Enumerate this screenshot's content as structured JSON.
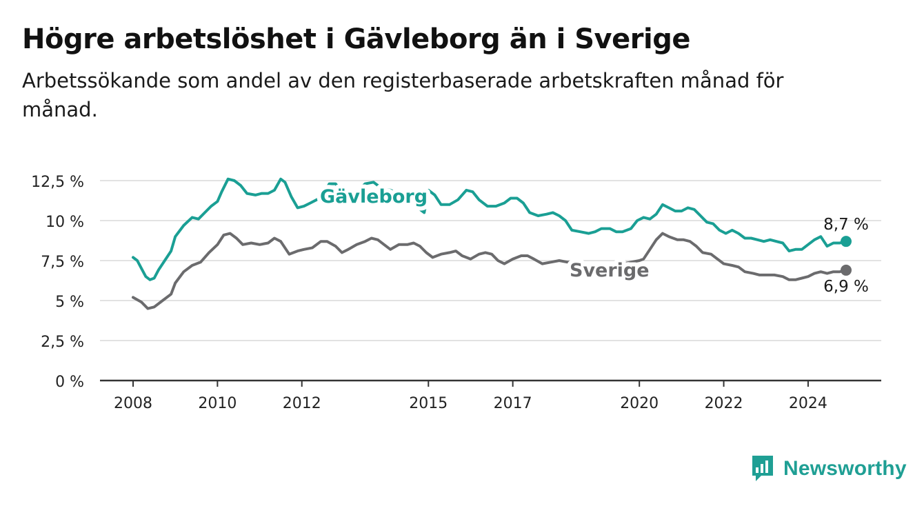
{
  "title": "Högre arbetslöshet i Gävleborg än i Sverige",
  "subtitle": "Arbetssökande som andel av den registerbaserade arbetskraften månad för månad.",
  "brand": {
    "name": "Newsworthy",
    "icon": "newsworthy-logo-icon"
  },
  "colors": {
    "gavleborg": "#1a9f94",
    "sverige": "#6b6b6d",
    "grid": "#d9d9d9",
    "axis": "#333333"
  },
  "chart_data": {
    "type": "line",
    "ylim": [
      0,
      12.5
    ],
    "yticks": [
      0,
      2.5,
      5,
      7.5,
      10,
      12.5
    ],
    "ytick_labels": [
      "0 %",
      "2,5 %",
      "5 %",
      "7,5 %",
      "10 %",
      "12,5 %"
    ],
    "xlim": [
      2008.0,
      2024.9
    ],
    "xticks": [
      2008,
      2010,
      2012,
      2015,
      2017,
      2020,
      2022,
      2024
    ],
    "xtick_labels": [
      "2008",
      "2010",
      "2012",
      "2015",
      "2017",
      "2020",
      "2022",
      "2024"
    ],
    "grid": true,
    "legend": "inline labels",
    "series": [
      {
        "name": "Gävleborg",
        "end_label": "8,7 %",
        "points": [
          [
            2008.0,
            7.7
          ],
          [
            2008.1,
            7.5
          ],
          [
            2008.2,
            7.0
          ],
          [
            2008.3,
            6.5
          ],
          [
            2008.4,
            6.3
          ],
          [
            2008.5,
            6.4
          ],
          [
            2008.6,
            6.9
          ],
          [
            2008.75,
            7.5
          ],
          [
            2008.9,
            8.1
          ],
          [
            2009.0,
            9.0
          ],
          [
            2009.2,
            9.7
          ],
          [
            2009.4,
            10.2
          ],
          [
            2009.55,
            10.1
          ],
          [
            2009.7,
            10.5
          ],
          [
            2009.85,
            10.9
          ],
          [
            2010.0,
            11.2
          ],
          [
            2010.1,
            11.8
          ],
          [
            2010.25,
            12.6
          ],
          [
            2010.4,
            12.5
          ],
          [
            2010.55,
            12.2
          ],
          [
            2010.7,
            11.7
          ],
          [
            2010.9,
            11.6
          ],
          [
            2011.05,
            11.7
          ],
          [
            2011.2,
            11.7
          ],
          [
            2011.35,
            11.9
          ],
          [
            2011.5,
            12.6
          ],
          [
            2011.6,
            12.4
          ],
          [
            2011.75,
            11.5
          ],
          [
            2011.9,
            10.8
          ],
          [
            2012.05,
            10.9
          ],
          [
            2012.2,
            11.1
          ],
          [
            2012.35,
            11.3
          ],
          [
            2012.5,
            11.6
          ],
          [
            2012.65,
            12.3
          ],
          [
            2012.8,
            12.3
          ],
          [
            2012.95,
            11.8
          ],
          [
            2013.1,
            11.2
          ],
          [
            2013.3,
            11.8
          ],
          [
            2013.5,
            12.3
          ],
          [
            2013.7,
            12.4
          ],
          [
            2013.9,
            12.0
          ],
          [
            2014.1,
            11.9
          ],
          [
            2014.3,
            11.7
          ],
          [
            2014.45,
            11.6
          ],
          [
            2014.6,
            11.3
          ],
          [
            2014.75,
            10.8
          ],
          [
            2014.9,
            10.5
          ],
          [
            2015.0,
            11.9
          ],
          [
            2015.15,
            11.6
          ],
          [
            2015.3,
            11.0
          ],
          [
            2015.5,
            11.0
          ],
          [
            2015.7,
            11.3
          ],
          [
            2015.9,
            11.9
          ],
          [
            2016.05,
            11.8
          ],
          [
            2016.2,
            11.3
          ],
          [
            2016.4,
            10.9
          ],
          [
            2016.6,
            10.9
          ],
          [
            2016.8,
            11.1
          ],
          [
            2016.95,
            11.4
          ],
          [
            2017.1,
            11.4
          ],
          [
            2017.25,
            11.1
          ],
          [
            2017.4,
            10.5
          ],
          [
            2017.6,
            10.3
          ],
          [
            2017.8,
            10.4
          ],
          [
            2017.95,
            10.5
          ],
          [
            2018.1,
            10.3
          ],
          [
            2018.25,
            10.0
          ],
          [
            2018.4,
            9.4
          ],
          [
            2018.6,
            9.3
          ],
          [
            2018.8,
            9.2
          ],
          [
            2018.95,
            9.3
          ],
          [
            2019.1,
            9.5
          ],
          [
            2019.3,
            9.5
          ],
          [
            2019.45,
            9.3
          ],
          [
            2019.6,
            9.3
          ],
          [
            2019.8,
            9.5
          ],
          [
            2019.95,
            10.0
          ],
          [
            2020.1,
            10.2
          ],
          [
            2020.25,
            10.1
          ],
          [
            2020.4,
            10.4
          ],
          [
            2020.55,
            11.0
          ],
          [
            2020.7,
            10.8
          ],
          [
            2020.85,
            10.6
          ],
          [
            2021.0,
            10.6
          ],
          [
            2021.15,
            10.8
          ],
          [
            2021.3,
            10.7
          ],
          [
            2021.45,
            10.3
          ],
          [
            2021.6,
            9.9
          ],
          [
            2021.75,
            9.8
          ],
          [
            2021.9,
            9.4
          ],
          [
            2022.05,
            9.2
          ],
          [
            2022.2,
            9.4
          ],
          [
            2022.35,
            9.2
          ],
          [
            2022.5,
            8.9
          ],
          [
            2022.65,
            8.9
          ],
          [
            2022.8,
            8.8
          ],
          [
            2022.95,
            8.7
          ],
          [
            2023.1,
            8.8
          ],
          [
            2023.25,
            8.7
          ],
          [
            2023.4,
            8.6
          ],
          [
            2023.55,
            8.1
          ],
          [
            2023.7,
            8.2
          ],
          [
            2023.85,
            8.2
          ],
          [
            2024.0,
            8.5
          ],
          [
            2024.15,
            8.8
          ],
          [
            2024.3,
            9.0
          ],
          [
            2024.45,
            8.4
          ],
          [
            2024.6,
            8.6
          ],
          [
            2024.75,
            8.6
          ],
          [
            2024.9,
            8.7
          ]
        ]
      },
      {
        "name": "Sverige",
        "end_label": "6,9 %",
        "points": [
          [
            2008.0,
            5.2
          ],
          [
            2008.2,
            4.9
          ],
          [
            2008.35,
            4.5
          ],
          [
            2008.5,
            4.6
          ],
          [
            2008.7,
            5.0
          ],
          [
            2008.9,
            5.4
          ],
          [
            2009.0,
            6.1
          ],
          [
            2009.2,
            6.8
          ],
          [
            2009.4,
            7.2
          ],
          [
            2009.6,
            7.4
          ],
          [
            2009.8,
            8.0
          ],
          [
            2010.0,
            8.5
          ],
          [
            2010.15,
            9.1
          ],
          [
            2010.3,
            9.2
          ],
          [
            2010.45,
            8.9
          ],
          [
            2010.6,
            8.5
          ],
          [
            2010.8,
            8.6
          ],
          [
            2011.0,
            8.5
          ],
          [
            2011.2,
            8.6
          ],
          [
            2011.35,
            8.9
          ],
          [
            2011.5,
            8.7
          ],
          [
            2011.7,
            7.9
          ],
          [
            2011.9,
            8.1
          ],
          [
            2012.05,
            8.2
          ],
          [
            2012.25,
            8.3
          ],
          [
            2012.45,
            8.7
          ],
          [
            2012.6,
            8.7
          ],
          [
            2012.8,
            8.4
          ],
          [
            2012.95,
            8.0
          ],
          [
            2013.1,
            8.2
          ],
          [
            2013.3,
            8.5
          ],
          [
            2013.5,
            8.7
          ],
          [
            2013.65,
            8.9
          ],
          [
            2013.8,
            8.8
          ],
          [
            2013.95,
            8.5
          ],
          [
            2014.1,
            8.2
          ],
          [
            2014.3,
            8.5
          ],
          [
            2014.5,
            8.5
          ],
          [
            2014.65,
            8.6
          ],
          [
            2014.8,
            8.4
          ],
          [
            2014.95,
            8.0
          ],
          [
            2015.1,
            7.7
          ],
          [
            2015.3,
            7.9
          ],
          [
            2015.5,
            8.0
          ],
          [
            2015.65,
            8.1
          ],
          [
            2015.8,
            7.8
          ],
          [
            2016.0,
            7.6
          ],
          [
            2016.2,
            7.9
          ],
          [
            2016.35,
            8.0
          ],
          [
            2016.5,
            7.9
          ],
          [
            2016.65,
            7.5
          ],
          [
            2016.8,
            7.3
          ],
          [
            2017.0,
            7.6
          ],
          [
            2017.2,
            7.8
          ],
          [
            2017.35,
            7.8
          ],
          [
            2017.5,
            7.6
          ],
          [
            2017.7,
            7.3
          ],
          [
            2017.9,
            7.4
          ],
          [
            2018.1,
            7.5
          ],
          [
            2018.3,
            7.4
          ],
          [
            2018.45,
            7.4
          ],
          [
            2018.6,
            7.2
          ],
          [
            2018.8,
            7.0
          ],
          [
            2019.0,
            7.0
          ],
          [
            2019.2,
            7.1
          ],
          [
            2019.4,
            7.2
          ],
          [
            2019.6,
            7.3
          ],
          [
            2019.8,
            7.4
          ],
          [
            2020.0,
            7.5
          ],
          [
            2020.1,
            7.6
          ],
          [
            2020.25,
            8.2
          ],
          [
            2020.4,
            8.8
          ],
          [
            2020.55,
            9.2
          ],
          [
            2020.7,
            9.0
          ],
          [
            2020.9,
            8.8
          ],
          [
            2021.05,
            8.8
          ],
          [
            2021.2,
            8.7
          ],
          [
            2021.35,
            8.4
          ],
          [
            2021.5,
            8.0
          ],
          [
            2021.7,
            7.9
          ],
          [
            2021.85,
            7.6
          ],
          [
            2022.0,
            7.3
          ],
          [
            2022.2,
            7.2
          ],
          [
            2022.35,
            7.1
          ],
          [
            2022.5,
            6.8
          ],
          [
            2022.7,
            6.7
          ],
          [
            2022.85,
            6.6
          ],
          [
            2023.0,
            6.6
          ],
          [
            2023.2,
            6.6
          ],
          [
            2023.4,
            6.5
          ],
          [
            2023.55,
            6.3
          ],
          [
            2023.7,
            6.3
          ],
          [
            2023.85,
            6.4
          ],
          [
            2024.0,
            6.5
          ],
          [
            2024.15,
            6.7
          ],
          [
            2024.3,
            6.8
          ],
          [
            2024.45,
            6.7
          ],
          [
            2024.6,
            6.8
          ],
          [
            2024.75,
            6.8
          ],
          [
            2024.9,
            6.9
          ]
        ]
      }
    ]
  }
}
